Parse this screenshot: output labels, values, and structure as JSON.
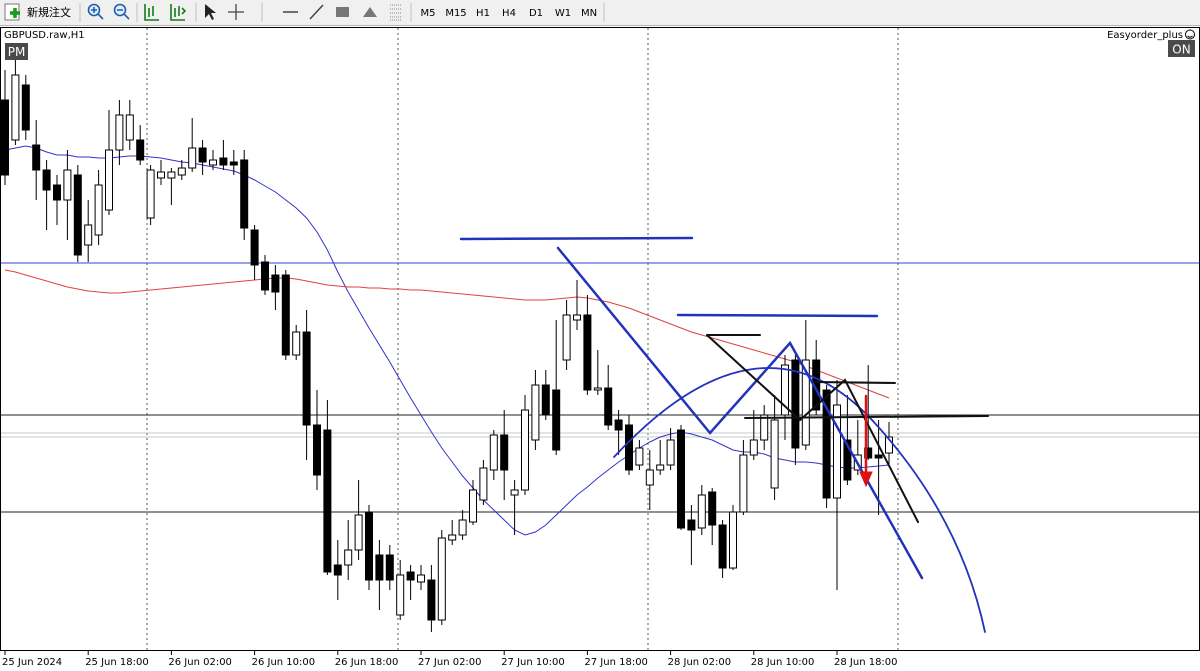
{
  "toolbar": {
    "order_button": "新規注文",
    "timeframes": [
      "M5",
      "M15",
      "H1",
      "H4",
      "D1",
      "W1",
      "MN"
    ]
  },
  "chart_data": {
    "type": "candlestick",
    "title": "GBPUSD.raw,H1",
    "badge": "PM",
    "expert": "Easyorder_plus",
    "expert_state": "ON",
    "up_color": "#ffffff",
    "down_color": "#000000",
    "categories": [
      "25 Jun 2024",
      null,
      null,
      null,
      null,
      null,
      null,
      null,
      "25 Jun 18:00",
      null,
      null,
      null,
      null,
      null,
      null,
      null,
      "26 Jun 02:00",
      null,
      null,
      null,
      null,
      null,
      null,
      null,
      "26 Jun 10:00",
      null,
      null,
      null,
      null,
      null,
      null,
      null,
      "26 Jun 18:00",
      null,
      null,
      null,
      null,
      null,
      null,
      null,
      "27 Jun 02:00",
      null,
      null,
      null,
      null,
      null,
      null,
      null,
      "27 Jun 10:00",
      null,
      null,
      null,
      null,
      null,
      null,
      null,
      "27 Jun 18:00",
      null,
      null,
      null,
      null,
      null,
      null,
      null,
      "28 Jun 02:00",
      null,
      null,
      null,
      null,
      null,
      null,
      null,
      "28 Jun 10:00",
      null,
      null,
      null,
      null,
      null,
      null,
      null,
      "28 Jun 18:00",
      null,
      null,
      null,
      null,
      null
    ],
    "open": [
      1.274,
      1.2732,
      1.2743,
      1.2731,
      1.2726,
      1.2723,
      1.272,
      1.2725,
      1.2711,
      1.2713,
      1.2718,
      1.273,
      1.2732,
      1.2732,
      1.27164,
      1.27244,
      1.27244,
      1.2725,
      1.27264,
      1.27304,
      1.2727,
      1.27284,
      1.27276,
      1.2728,
      1.2714,
      1.27076,
      1.2705,
      1.2705,
      1.2689,
      1.26936,
      1.2675,
      1.2674,
      1.2647,
      1.2647,
      1.265,
      1.26576,
      1.2649,
      1.2649,
      1.2637,
      1.26456,
      1.26436,
      1.2644,
      1.2636,
      1.2652,
      1.2653,
      1.26556,
      1.266,
      1.2666,
      1.2673,
      1.2661,
      1.2662,
      1.2672,
      1.2683,
      1.2682,
      1.2688,
      1.2696,
      1.2697,
      1.2682,
      1.26824,
      1.2676,
      1.2675,
      1.2667,
      1.2663,
      1.2666,
      1.2667,
      1.2674,
      1.2656,
      1.26544,
      1.26616,
      1.2655,
      1.26464,
      1.26576,
      1.2669,
      1.2672,
      1.26624,
      1.2677,
      1.2688,
      1.2671,
      1.2688,
      1.2682,
      1.26604,
      1.2672,
      1.2666,
      1.26704,
      1.2669,
      1.26694
    ],
    "high": [
      1.2746,
      1.2748,
      1.2745,
      1.2736,
      1.2728,
      1.2725,
      1.273,
      1.2727,
      1.272,
      1.2726,
      1.2738,
      1.274,
      1.274,
      1.2735,
      1.2727,
      1.2728,
      1.27264,
      1.2728,
      1.27364,
      1.2732,
      1.273,
      1.2732,
      1.273,
      1.273,
      1.2715,
      1.2709,
      1.2707,
      1.2706,
      1.2695,
      1.2698,
      1.2682,
      1.268,
      1.2652,
      1.2656,
      1.2664,
      1.2659,
      1.2652,
      1.2651,
      1.2648,
      1.2647,
      1.2647,
      1.2647,
      1.2654,
      1.2656,
      1.2658,
      1.2664,
      1.2668,
      1.2674,
      1.2678,
      1.2664,
      1.2681,
      1.2686,
      1.2686,
      1.2696,
      1.27,
      1.2704,
      1.2701,
      1.269,
      1.2687,
      1.2678,
      1.2677,
      1.2672,
      1.267,
      1.2672,
      1.26744,
      1.2675,
      1.2659,
      1.2663,
      1.26624,
      1.2656,
      1.2659,
      1.2672,
      1.2678,
      1.2679,
      1.2681,
      1.2689,
      1.2689,
      1.2696,
      1.2692,
      1.2683,
      1.2684,
      1.2681,
      1.2676,
      1.2687,
      1.2676,
      1.26756
    ],
    "low": [
      1.2723,
      1.2731,
      1.2732,
      1.272,
      1.2714,
      1.2715,
      1.2712,
      1.27076,
      1.27076,
      1.2711,
      1.2717,
      1.2727,
      1.273,
      1.2727,
      1.2715,
      1.2723,
      1.2719,
      1.2724,
      1.27256,
      1.2725,
      1.2726,
      1.2726,
      1.2725,
      1.2712,
      1.2704,
      1.2701,
      1.2698,
      1.2688,
      1.2688,
      1.2668,
      1.2662,
      1.2645,
      1.264,
      1.2644,
      1.2648,
      1.2642,
      1.2638,
      1.2642,
      1.2636,
      1.264,
      1.2642,
      1.26336,
      1.2635,
      1.2651,
      1.2652,
      1.2655,
      1.2659,
      1.2664,
      1.266,
      1.2653,
      1.2661,
      1.267,
      1.2676,
      1.2669,
      1.2686,
      1.2694,
      1.2681,
      1.2681,
      1.2674,
      1.2669,
      1.2665,
      1.2666,
      1.2658,
      1.2665,
      1.2666,
      1.2654,
      1.2647,
      1.2653,
      1.2651,
      1.26444,
      1.2646,
      1.2657,
      1.2668,
      1.267,
      1.266,
      1.2672,
      1.2667,
      1.267,
      1.2677,
      1.26584,
      1.2642,
      1.2663,
      1.2665,
      1.2668,
      1.2657,
      1.2667
    ],
    "close": [
      1.2725,
      1.2745,
      1.2734,
      1.2726,
      1.2722,
      1.272,
      1.2726,
      1.2709,
      1.2715,
      1.2723,
      1.273,
      1.2737,
      1.2737,
      1.2728,
      1.2726,
      1.27256,
      1.27256,
      1.27264,
      1.27304,
      1.27276,
      1.2728,
      1.2727,
      1.2727,
      1.27144,
      1.2707,
      1.2702,
      1.27016,
      1.2689,
      1.26936,
      1.2675,
      1.2665,
      1.26456,
      1.2645,
      1.265,
      1.2657,
      1.2644,
      1.2644,
      1.2644,
      1.2645,
      1.2644,
      1.2645,
      1.2636,
      1.26524,
      1.2653,
      1.2656,
      1.2662,
      1.26664,
      1.2673,
      1.2666,
      1.2662,
      1.2678,
      1.2683,
      1.2677,
      1.267,
      1.2697,
      1.2697,
      1.2682,
      1.26824,
      1.2675,
      1.2674,
      1.2666,
      1.26704,
      1.2666,
      1.2667,
      1.2672,
      1.26544,
      1.2654,
      1.2661,
      1.2655,
      1.26464,
      1.26576,
      1.2669,
      1.2672,
      1.2677,
      1.2676,
      1.2687,
      1.26704,
      1.2688,
      1.2678,
      1.26604,
      1.2679,
      1.2664,
      1.2669,
      1.26684,
      1.26684,
      1.26726
    ],
    "lines": [
      {
        "color": "#3333cc",
        "values": [
          1.273,
          1.27304,
          1.27308,
          1.27304,
          1.27296,
          1.2729,
          1.2729,
          1.27286,
          1.27286,
          1.27284,
          1.27284,
          1.27286,
          1.27288,
          1.27288,
          1.27286,
          1.27284,
          1.2728,
          1.27276,
          1.27274,
          1.2727,
          1.27266,
          1.27262,
          1.27258,
          1.2725,
          1.2724,
          1.27228,
          1.27216,
          1.272,
          1.27184,
          1.27164,
          1.27136,
          1.271,
          1.27056,
          1.27016,
          1.2698,
          1.26944,
          1.2691,
          1.26876,
          1.2684,
          1.26804,
          1.2677,
          1.26736,
          1.26704,
          1.26676,
          1.26648,
          1.26624,
          1.266,
          1.2658,
          1.2656,
          1.2654,
          1.2653,
          1.26536,
          1.2655,
          1.2657,
          1.2659,
          1.2661,
          1.26626,
          1.26644,
          1.2666,
          1.26676,
          1.2669,
          1.26704,
          1.26716,
          1.26726,
          1.26732,
          1.26736,
          1.26732,
          1.26726,
          1.2672,
          1.2671,
          1.267,
          1.26696,
          1.26696,
          1.26692,
          1.26684,
          1.2668,
          1.26676,
          1.26676,
          1.26674,
          1.2667,
          1.26666,
          1.26664,
          1.26664,
          1.26666,
          1.26668,
          1.2667
        ]
      },
      {
        "color": "#e04040",
        "values": [
          1.2706,
          1.27056,
          1.2705,
          1.27044,
          1.27038,
          1.27032,
          1.27026,
          1.27022,
          1.27018,
          1.27016,
          1.27014,
          1.27014,
          1.27016,
          1.27018,
          1.2702,
          1.27022,
          1.27024,
          1.27026,
          1.27028,
          1.2703,
          1.27032,
          1.27034,
          1.27036,
          1.27038,
          1.2704,
          1.27042,
          1.27044,
          1.27044,
          1.27042,
          1.27038,
          1.27034,
          1.2703,
          1.27028,
          1.27026,
          1.27026,
          1.27024,
          1.27024,
          1.27022,
          1.27022,
          1.2702,
          1.2702,
          1.27018,
          1.27016,
          1.27014,
          1.27012,
          1.2701,
          1.27008,
          1.27006,
          1.27004,
          1.27002,
          1.27,
          1.27,
          1.27,
          1.27002,
          1.27004,
          1.27006,
          1.27004,
          1.27,
          1.26996,
          1.2699,
          1.26984,
          1.26976,
          1.26968,
          1.2696,
          1.26952,
          1.26944,
          1.26936,
          1.2693,
          1.26924,
          1.26918,
          1.26912,
          1.26906,
          1.269,
          1.26894,
          1.26888,
          1.26882,
          1.26876,
          1.26868,
          1.2686,
          1.26852,
          1.26844,
          1.26836,
          1.26828,
          1.2682,
          1.26812,
          1.26804
        ]
      }
    ],
    "hlines": [
      {
        "value": 1.27074,
        "color": "#3344cc"
      },
      {
        "value": 1.2677,
        "color": "#222222"
      },
      {
        "value": 1.26734,
        "color": "#c8c8c8"
      },
      {
        "value": 1.26726,
        "color": "#c8c8c8"
      },
      {
        "value": 1.26576,
        "color": "#222222"
      }
    ],
    "ylim": [
      1.263,
      1.2754
    ]
  }
}
